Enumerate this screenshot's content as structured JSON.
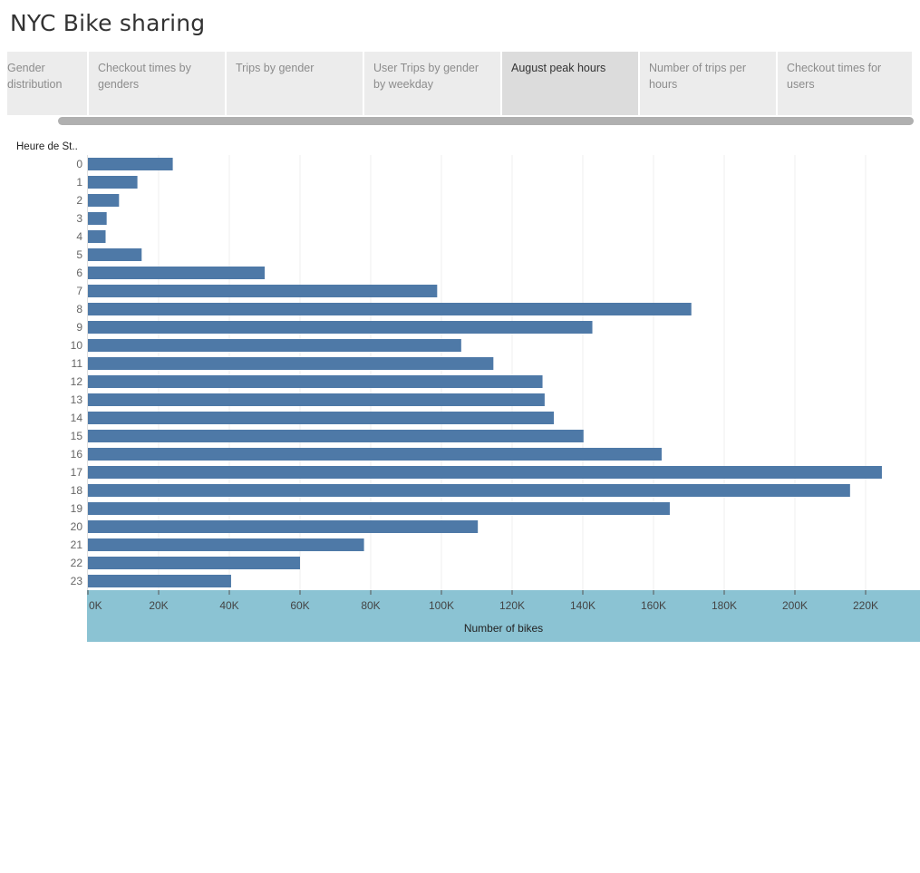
{
  "dashboard": {
    "title": "NYC Bike sharing"
  },
  "tabs": [
    {
      "label": "Gender distribution",
      "active": false
    },
    {
      "label": "Checkout times by genders",
      "active": false
    },
    {
      "label": "Trips by gender",
      "active": false
    },
    {
      "label": "User Trips by gender by weekday",
      "active": false
    },
    {
      "label": "August peak hours",
      "active": true
    },
    {
      "label": "Number of trips per hours",
      "active": false
    },
    {
      "label": "Checkout times for users",
      "active": false
    }
  ],
  "colors": {
    "bar": "#4e79a7",
    "axis_band": "#8bc3d3",
    "gridline": "#efefef"
  },
  "chart_data": {
    "type": "bar",
    "orientation": "horizontal",
    "row_header": "Heure de St..",
    "xlabel": "Number of bikes",
    "categories": [
      "0",
      "1",
      "2",
      "3",
      "4",
      "5",
      "6",
      "7",
      "8",
      "9",
      "10",
      "11",
      "12",
      "13",
      "14",
      "15",
      "16",
      "17",
      "18",
      "19",
      "20",
      "21",
      "22",
      "23"
    ],
    "values": [
      24000,
      14000,
      8800,
      5300,
      5000,
      15200,
      50000,
      98800,
      170700,
      142700,
      105600,
      114700,
      128600,
      129200,
      131800,
      140200,
      162300,
      224600,
      215600,
      164600,
      110300,
      78100,
      60000,
      40500
    ],
    "xlim": [
      0,
      235000
    ],
    "xticks": [
      0,
      20000,
      40000,
      60000,
      80000,
      100000,
      120000,
      140000,
      160000,
      180000,
      200000,
      220000
    ],
    "xtick_labels": [
      "0K",
      "20K",
      "40K",
      "60K",
      "80K",
      "100K",
      "120K",
      "140K",
      "160K",
      "180K",
      "200K",
      "220K"
    ],
    "grid": true,
    "legend": "none"
  }
}
